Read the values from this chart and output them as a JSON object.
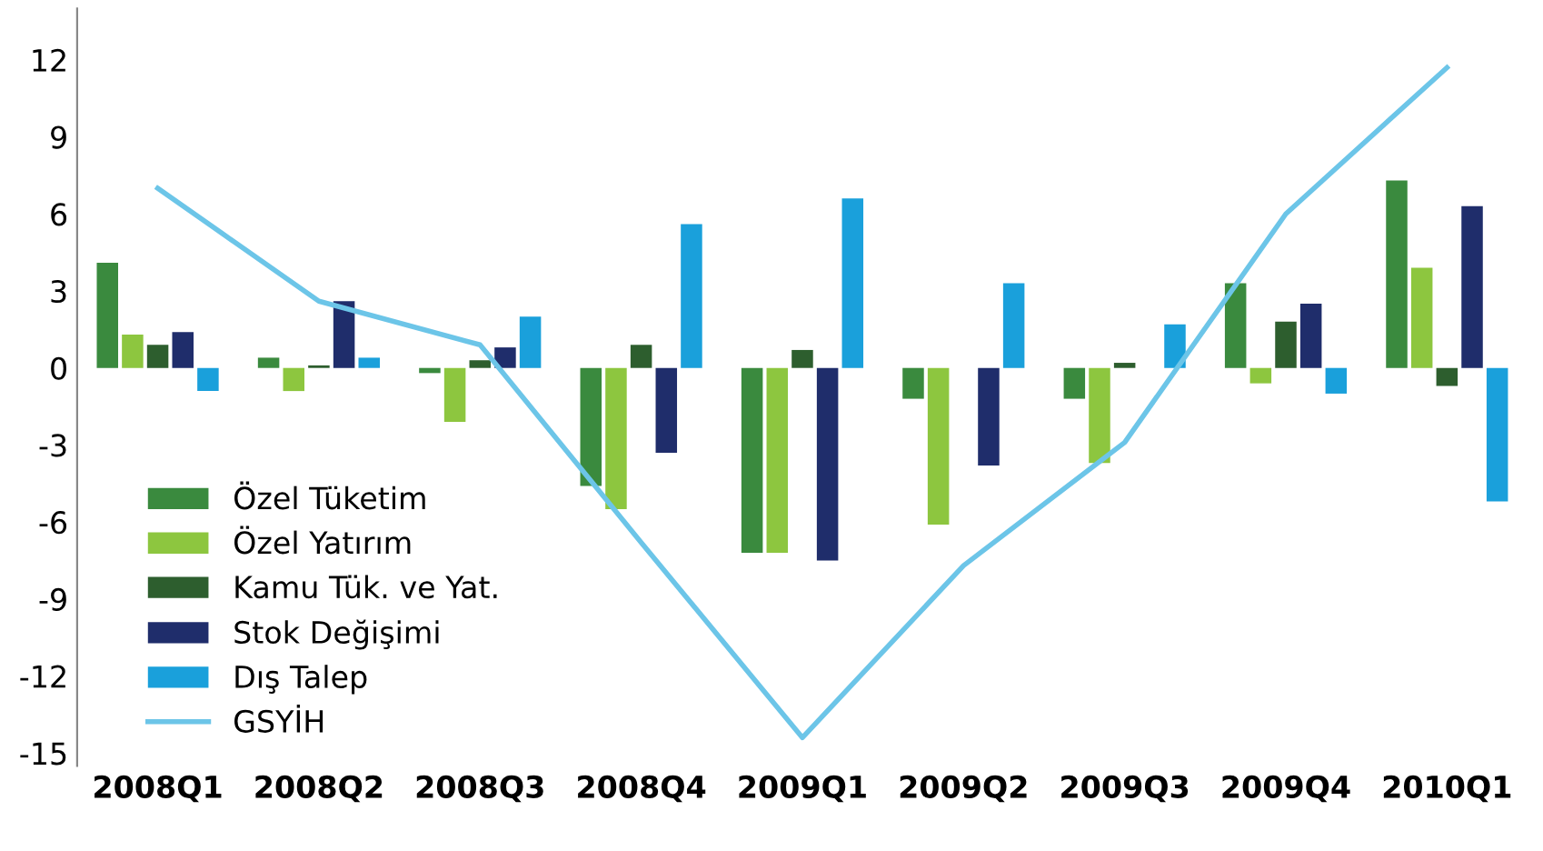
{
  "chart_data": {
    "type": "bar",
    "categories": [
      "2008Q1",
      "2008Q2",
      "2008Q3",
      "2008Q4",
      "2009Q1",
      "2009Q2",
      "2009Q3",
      "2009Q4",
      "2010Q1"
    ],
    "series": [
      {
        "name": "Özel Tüketim",
        "color": "#3a8a3e",
        "values": [
          4.1,
          0.4,
          -0.2,
          -4.6,
          -7.2,
          -1.2,
          -1.2,
          3.3,
          7.3
        ]
      },
      {
        "name": "Özel Yatırım",
        "color": "#8dc63f",
        "values": [
          1.3,
          -0.9,
          -2.1,
          -5.5,
          -7.2,
          -6.1,
          -3.7,
          -0.6,
          3.9
        ]
      },
      {
        "name": "Kamu Tük. ve Yat.",
        "color": "#2d5e2e",
        "values": [
          0.9,
          0.1,
          0.3,
          0.9,
          0.7,
          0.0,
          0.2,
          1.8,
          -0.7
        ]
      },
      {
        "name": "Stok Değişimi",
        "color": "#1f2d6b",
        "values": [
          1.4,
          2.6,
          0.8,
          -3.3,
          -7.5,
          -3.8,
          0.0,
          2.5,
          6.3
        ]
      },
      {
        "name": "Dış Talep",
        "color": "#1aa0db",
        "values": [
          -0.9,
          0.4,
          2.0,
          5.6,
          6.6,
          3.3,
          1.7,
          -1.0,
          -5.2
        ]
      },
      {
        "name": "GSYİH",
        "type": "line",
        "color": "#6cc5e8",
        "values": [
          7.0,
          2.6,
          0.9,
          -6.8,
          -14.4,
          -7.7,
          -2.9,
          6.0,
          11.7
        ]
      }
    ],
    "ylim": [
      -15.5,
      14
    ],
    "yticks": [
      12,
      9,
      6,
      3,
      0,
      -3,
      -6,
      -9,
      -12,
      -15
    ],
    "grid": false,
    "legend": "bottom left"
  }
}
